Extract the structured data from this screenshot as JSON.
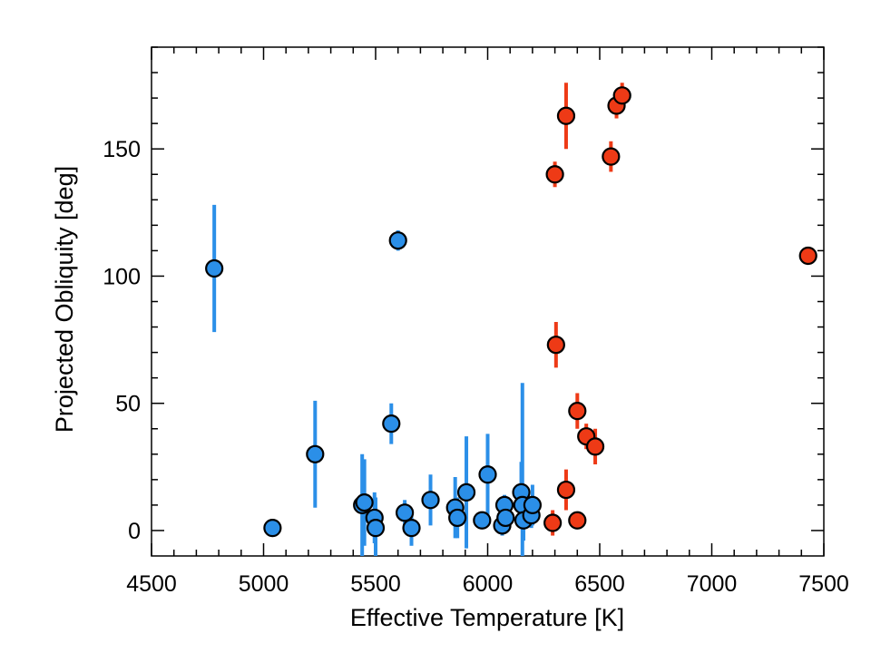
{
  "chart_data": {
    "type": "scatter",
    "xlabel": "Effective Temperature [K]",
    "ylabel": "Projected Obliquity [deg]",
    "xlim": [
      4500,
      7500
    ],
    "ylim": [
      -10,
      190
    ],
    "xticks": [
      "4500",
      "5000",
      "5500",
      "6000",
      "6500",
      "7000",
      "7500"
    ],
    "yticks": [
      "0",
      "50",
      "100",
      "150"
    ],
    "grid": false,
    "colors": {
      "cool": "#2b8fe8",
      "hot": "#ee3a16",
      "marker_edge": "#000000"
    },
    "series": [
      {
        "points": [
          {
            "x": 4780,
            "y": 103,
            "err": 25
          },
          {
            "x": 5040,
            "y": 1,
            "err": 0
          },
          {
            "x": 5230,
            "y": 30,
            "err": 21
          },
          {
            "x": 5440,
            "y": 10,
            "err": 20
          },
          {
            "x": 5450,
            "y": 11,
            "err": 17
          },
          {
            "x": 5495,
            "y": 5,
            "err": 10
          },
          {
            "x": 5500,
            "y": 1,
            "err": 12
          },
          {
            "x": 5570,
            "y": 42,
            "err": 8
          },
          {
            "x": 5600,
            "y": 114,
            "err": 4
          },
          {
            "x": 5630,
            "y": 7,
            "err": 5
          },
          {
            "x": 5660,
            "y": 1,
            "err": 7
          },
          {
            "x": 5745,
            "y": 12,
            "err": 10
          },
          {
            "x": 5855,
            "y": 9,
            "err": 12
          },
          {
            "x": 5865,
            "y": 5,
            "err": 8
          },
          {
            "x": 5905,
            "y": 15,
            "err": 22
          },
          {
            "x": 5975,
            "y": 4,
            "err": 3
          },
          {
            "x": 6000,
            "y": 22,
            "err": 16
          },
          {
            "x": 6065,
            "y": 2,
            "err": 4
          },
          {
            "x": 6075,
            "y": 10,
            "err": 4
          },
          {
            "x": 6080,
            "y": 5,
            "err": 6
          },
          {
            "x": 6150,
            "y": 15,
            "err": 12
          },
          {
            "x": 6155,
            "y": 10,
            "err": 48
          },
          {
            "x": 6160,
            "y": 4,
            "err": 8
          },
          {
            "x": 6195,
            "y": 6,
            "err": 5
          },
          {
            "x": 6200,
            "y": 10,
            "err": 8
          }
        ]
      },
      {
        "points": [
          {
            "x": 6290,
            "y": 3,
            "err": 5
          },
          {
            "x": 6300,
            "y": 140,
            "err": 5
          },
          {
            "x": 6305,
            "y": 73,
            "err": 9
          },
          {
            "x": 6350,
            "y": 163,
            "err": 13
          },
          {
            "x": 6350,
            "y": 16,
            "err": 8
          },
          {
            "x": 6400,
            "y": 4,
            "err": 3
          },
          {
            "x": 6400,
            "y": 47,
            "err": 7
          },
          {
            "x": 6440,
            "y": 37,
            "err": 5
          },
          {
            "x": 6480,
            "y": 33,
            "err": 7
          },
          {
            "x": 6550,
            "y": 147,
            "err": 6
          },
          {
            "x": 6575,
            "y": 167,
            "err": 5
          },
          {
            "x": 6600,
            "y": 171,
            "err": 5
          },
          {
            "x": 7430,
            "y": 108,
            "err": 0
          }
        ]
      }
    ]
  }
}
